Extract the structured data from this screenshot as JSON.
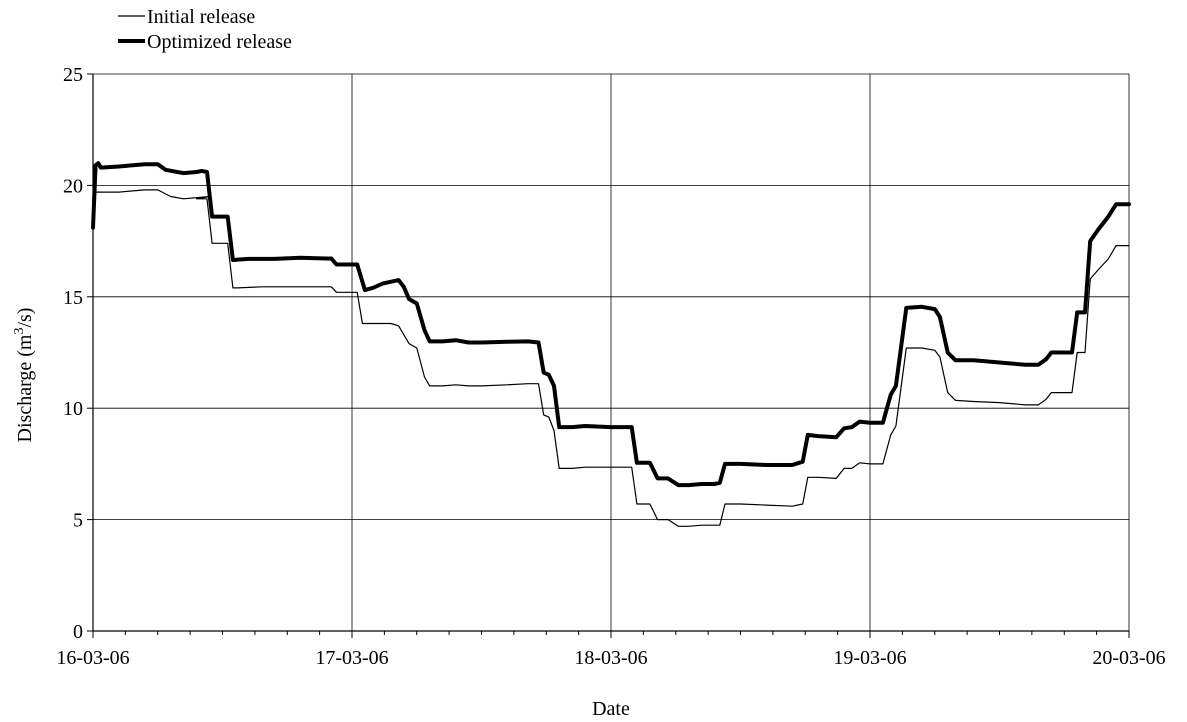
{
  "chart_data": {
    "type": "line",
    "xlabel": "Date",
    "ylabel": "Discharge (m³/s)",
    "ylabel_parts": {
      "before": "Discharge (m",
      "sup": "3",
      "after": "/s)"
    },
    "xlim": [
      0,
      4
    ],
    "ylim": [
      0,
      25
    ],
    "x_tick_labels": [
      "16-03-06",
      "17-03-06",
      "18-03-06",
      "19-03-06",
      "20-03-06"
    ],
    "y_ticks": [
      0,
      5,
      10,
      15,
      20,
      25
    ],
    "grid": true,
    "legend_position": "top-left",
    "series": [
      {
        "name": "Initial release",
        "color": "#000000",
        "points": [
          [
            0,
            18.2
          ],
          [
            0.01,
            19.7
          ],
          [
            0.1,
            19.7
          ],
          [
            0.2,
            19.8
          ],
          [
            0.25,
            19.8
          ],
          [
            0.3,
            19.5
          ],
          [
            0.35,
            19.4
          ],
          [
            0.45,
            19.5
          ],
          [
            0.4,
            19.4
          ],
          [
            0.42,
            19.4
          ],
          [
            0.44,
            19.4
          ],
          [
            0.46,
            17.4
          ],
          [
            0.5,
            17.4
          ],
          [
            0.52,
            17.4
          ],
          [
            0.54,
            15.4
          ],
          [
            0.56,
            15.4
          ],
          [
            0.65,
            15.45
          ],
          [
            0.8,
            15.45
          ],
          [
            0.92,
            15.45
          ],
          [
            0.94,
            15.2
          ],
          [
            1.0,
            15.2
          ],
          [
            1.02,
            15.2
          ],
          [
            1.04,
            13.8
          ],
          [
            1.1,
            13.8
          ],
          [
            1.15,
            13.8
          ],
          [
            1.18,
            13.7
          ],
          [
            1.22,
            12.9
          ],
          [
            1.25,
            12.7
          ],
          [
            1.28,
            11.4
          ],
          [
            1.3,
            11.0
          ],
          [
            1.35,
            11.0
          ],
          [
            1.4,
            11.05
          ],
          [
            1.45,
            11.0
          ],
          [
            1.5,
            11.0
          ],
          [
            1.6,
            11.05
          ],
          [
            1.68,
            11.1
          ],
          [
            1.72,
            11.1
          ],
          [
            1.74,
            9.7
          ],
          [
            1.76,
            9.6
          ],
          [
            1.78,
            9.0
          ],
          [
            1.8,
            7.3
          ],
          [
            1.85,
            7.3
          ],
          [
            1.9,
            7.35
          ],
          [
            2.0,
            7.35
          ],
          [
            2.08,
            7.35
          ],
          [
            2.1,
            5.7
          ],
          [
            2.15,
            5.7
          ],
          [
            2.18,
            5.0
          ],
          [
            2.22,
            5.0
          ],
          [
            2.26,
            4.7
          ],
          [
            2.3,
            4.7
          ],
          [
            2.35,
            4.75
          ],
          [
            2.4,
            4.75
          ],
          [
            2.42,
            4.75
          ],
          [
            2.44,
            5.7
          ],
          [
            2.5,
            5.7
          ],
          [
            2.6,
            5.65
          ],
          [
            2.7,
            5.6
          ],
          [
            2.74,
            5.7
          ],
          [
            2.76,
            6.9
          ],
          [
            2.8,
            6.9
          ],
          [
            2.87,
            6.85
          ],
          [
            2.9,
            7.3
          ],
          [
            2.93,
            7.3
          ],
          [
            2.96,
            7.55
          ],
          [
            3.0,
            7.5
          ],
          [
            3.05,
            7.5
          ],
          [
            3.08,
            8.8
          ],
          [
            3.1,
            9.2
          ],
          [
            3.14,
            12.7
          ],
          [
            3.2,
            12.7
          ],
          [
            3.25,
            12.6
          ],
          [
            3.27,
            12.3
          ],
          [
            3.3,
            10.7
          ],
          [
            3.33,
            10.35
          ],
          [
            3.4,
            10.3
          ],
          [
            3.5,
            10.25
          ],
          [
            3.6,
            10.15
          ],
          [
            3.65,
            10.15
          ],
          [
            3.68,
            10.4
          ],
          [
            3.7,
            10.7
          ],
          [
            3.78,
            10.7
          ],
          [
            3.8,
            12.5
          ],
          [
            3.83,
            12.5
          ],
          [
            3.85,
            15.8
          ],
          [
            3.88,
            16.2
          ],
          [
            3.92,
            16.7
          ],
          [
            3.95,
            17.3
          ],
          [
            4.0,
            17.3
          ]
        ]
      },
      {
        "name": "Optimized release",
        "color": "#000000",
        "points": [
          [
            0,
            18.1
          ],
          [
            0.01,
            20.9
          ],
          [
            0.02,
            21.0
          ],
          [
            0.03,
            20.8
          ],
          [
            0.1,
            20.85
          ],
          [
            0.2,
            20.95
          ],
          [
            0.25,
            20.95
          ],
          [
            0.28,
            20.7
          ],
          [
            0.35,
            20.55
          ],
          [
            0.4,
            20.6
          ],
          [
            0.42,
            20.65
          ],
          [
            0.44,
            20.6
          ],
          [
            0.46,
            18.6
          ],
          [
            0.52,
            18.6
          ],
          [
            0.54,
            16.65
          ],
          [
            0.6,
            16.7
          ],
          [
            0.7,
            16.7
          ],
          [
            0.8,
            16.75
          ],
          [
            0.9,
            16.72
          ],
          [
            0.92,
            16.72
          ],
          [
            0.94,
            16.45
          ],
          [
            1.0,
            16.45
          ],
          [
            1.02,
            16.45
          ],
          [
            1.05,
            15.3
          ],
          [
            1.08,
            15.4
          ],
          [
            1.12,
            15.6
          ],
          [
            1.18,
            15.75
          ],
          [
            1.2,
            15.45
          ],
          [
            1.22,
            14.9
          ],
          [
            1.25,
            14.7
          ],
          [
            1.28,
            13.5
          ],
          [
            1.3,
            13.0
          ],
          [
            1.35,
            13.0
          ],
          [
            1.4,
            13.05
          ],
          [
            1.45,
            12.95
          ],
          [
            1.5,
            12.95
          ],
          [
            1.6,
            12.98
          ],
          [
            1.68,
            13.0
          ],
          [
            1.72,
            12.95
          ],
          [
            1.74,
            11.6
          ],
          [
            1.76,
            11.5
          ],
          [
            1.78,
            11.0
          ],
          [
            1.8,
            9.15
          ],
          [
            1.85,
            9.15
          ],
          [
            1.9,
            9.2
          ],
          [
            2.0,
            9.15
          ],
          [
            2.08,
            9.15
          ],
          [
            2.1,
            7.55
          ],
          [
            2.15,
            7.55
          ],
          [
            2.18,
            6.85
          ],
          [
            2.22,
            6.85
          ],
          [
            2.26,
            6.55
          ],
          [
            2.3,
            6.55
          ],
          [
            2.35,
            6.6
          ],
          [
            2.4,
            6.6
          ],
          [
            2.42,
            6.65
          ],
          [
            2.44,
            7.5
          ],
          [
            2.5,
            7.5
          ],
          [
            2.6,
            7.45
          ],
          [
            2.7,
            7.45
          ],
          [
            2.74,
            7.6
          ],
          [
            2.76,
            8.8
          ],
          [
            2.8,
            8.75
          ],
          [
            2.87,
            8.7
          ],
          [
            2.9,
            9.1
          ],
          [
            2.93,
            9.15
          ],
          [
            2.96,
            9.4
          ],
          [
            3.0,
            9.35
          ],
          [
            3.05,
            9.35
          ],
          [
            3.08,
            10.6
          ],
          [
            3.1,
            11.0
          ],
          [
            3.14,
            14.5
          ],
          [
            3.2,
            14.55
          ],
          [
            3.25,
            14.45
          ],
          [
            3.27,
            14.1
          ],
          [
            3.3,
            12.5
          ],
          [
            3.33,
            12.15
          ],
          [
            3.4,
            12.15
          ],
          [
            3.5,
            12.05
          ],
          [
            3.6,
            11.95
          ],
          [
            3.65,
            11.95
          ],
          [
            3.68,
            12.2
          ],
          [
            3.7,
            12.5
          ],
          [
            3.78,
            12.5
          ],
          [
            3.8,
            14.3
          ],
          [
            3.83,
            14.3
          ],
          [
            3.85,
            17.5
          ],
          [
            3.88,
            18.0
          ],
          [
            3.92,
            18.6
          ],
          [
            3.95,
            19.15
          ],
          [
            4.0,
            19.15
          ]
        ]
      }
    ]
  }
}
